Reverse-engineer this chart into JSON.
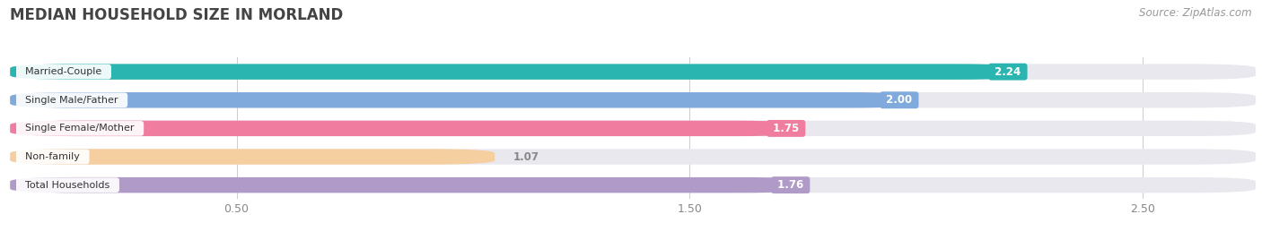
{
  "title": "MEDIAN HOUSEHOLD SIZE IN MORLAND",
  "source": "Source: ZipAtlas.com",
  "categories": [
    "Married-Couple",
    "Single Male/Father",
    "Single Female/Mother",
    "Non-family",
    "Total Households"
  ],
  "values": [
    2.24,
    2.0,
    1.75,
    1.07,
    1.76
  ],
  "bar_colors": [
    "#2ab5b0",
    "#7faadb",
    "#f07ca0",
    "#f5cfa0",
    "#b09ac8"
  ],
  "value_label_colors": [
    "#ffffff",
    "#ffffff",
    "#ffffff",
    "#888888",
    "#ffffff"
  ],
  "xlim": [
    0,
    2.75
  ],
  "xticks": [
    0.5,
    1.5,
    2.5
  ],
  "background_color": "#ffffff",
  "plot_bg_color": "#f5f5f8",
  "title_fontsize": 12,
  "source_fontsize": 8.5,
  "bar_height": 0.55
}
